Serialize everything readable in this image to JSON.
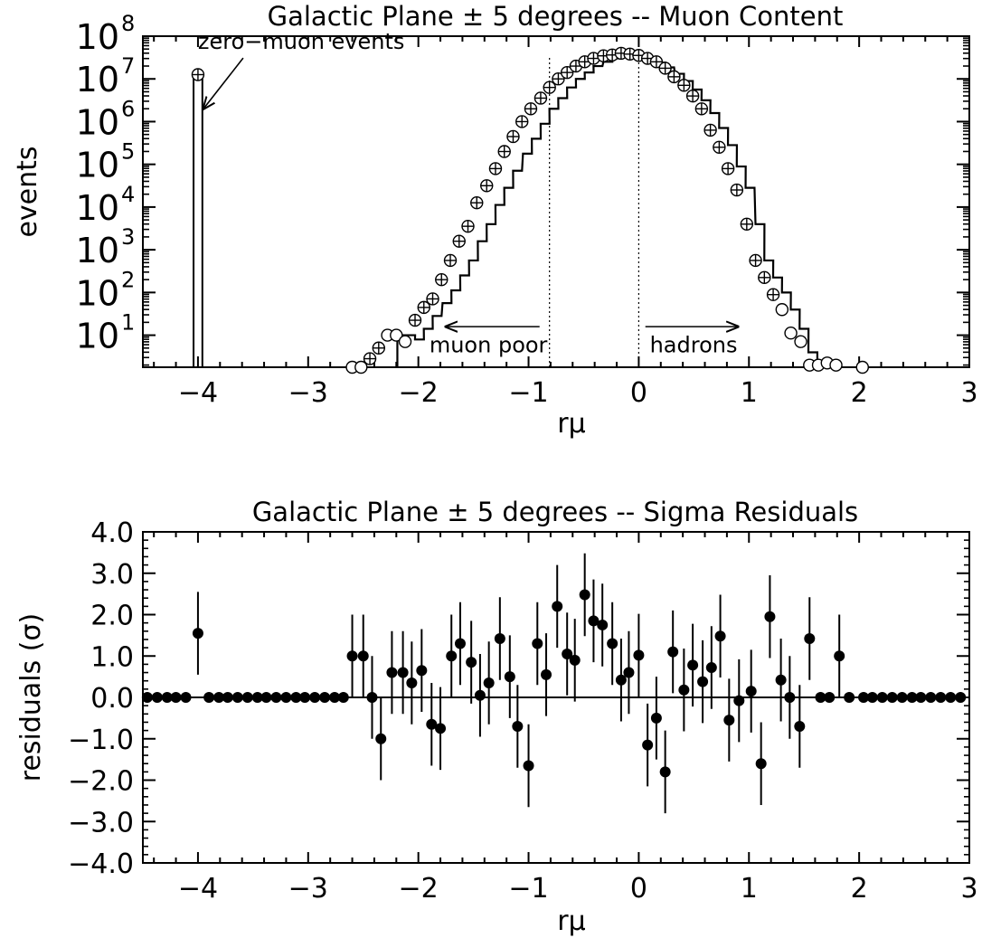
{
  "chart_data": [
    {
      "type": "step",
      "title": "Galactic Plane ± 5 degrees -- Muon Content",
      "xlabel": "rμ",
      "ylabel": "events",
      "xlim": [
        -4.5,
        3.0
      ],
      "ylim_log10": [
        0.25,
        8.0
      ],
      "yscale": "log",
      "xticks": [
        -4,
        -3,
        -2,
        -1,
        0,
        1,
        2,
        3
      ],
      "xtick_labels": [
        "−4",
        "−3",
        "−2",
        "−1",
        "0",
        "1",
        "2",
        "3"
      ],
      "yticks_log10": [
        1,
        2,
        3,
        4,
        5,
        6,
        7,
        8
      ],
      "ytick_exponents": [
        "1",
        "2",
        "3",
        "4",
        "5",
        "6",
        "7",
        "8"
      ],
      "ytick_base": "10",
      "zero_muon_bar": {
        "x0": -4.04,
        "x1": -3.96,
        "log10_events": 7.1
      },
      "series": [
        {
          "kind": "histogram",
          "bin_width": 0.0811,
          "bin_centers": [
            -2.15,
            -2.07,
            -1.99,
            -1.91,
            -1.83,
            -1.74,
            -1.66,
            -1.58,
            -1.5,
            -1.42,
            -1.34,
            -1.26,
            -1.18,
            -1.1,
            -1.01,
            -0.93,
            -0.85,
            -0.77,
            -0.69,
            -0.61,
            -0.53,
            -0.45,
            -0.37,
            -0.28,
            -0.2,
            -0.12,
            -0.04,
            0.04,
            0.12,
            0.2,
            0.28,
            0.37,
            0.45,
            0.53,
            0.61,
            0.69,
            0.77,
            0.85,
            0.93,
            1.01,
            1.1,
            1.18,
            1.26,
            1.34,
            1.42,
            1.5,
            1.58
          ],
          "log10_events": [
            1.0,
            1.0,
            0.9,
            1.15,
            1.45,
            1.75,
            2.05,
            2.4,
            2.75,
            3.2,
            3.6,
            4.05,
            4.45,
            4.85,
            5.25,
            5.6,
            5.95,
            6.3,
            6.55,
            6.8,
            7.0,
            7.15,
            7.3,
            7.4,
            7.48,
            7.53,
            7.55,
            7.52,
            7.47,
            7.38,
            7.27,
            7.12,
            6.95,
            6.75,
            6.5,
            6.2,
            5.85,
            5.45,
            4.95,
            4.45,
            3.6,
            2.75,
            2.35,
            2.0,
            1.6,
            1.15,
            0.6
          ]
        },
        {
          "kind": "open-circles",
          "x": [
            -4.0,
            -2.6,
            -2.52,
            -2.44,
            -2.36,
            -2.28,
            -2.2,
            -2.12,
            -2.03,
            -1.95,
            -1.87,
            -1.79,
            -1.71,
            -1.63,
            -1.55,
            -1.47,
            -1.38,
            -1.3,
            -1.22,
            -1.14,
            -1.06,
            -0.98,
            -0.89,
            -0.81,
            -0.73,
            -0.65,
            -0.57,
            -0.49,
            -0.41,
            -0.32,
            -0.24,
            -0.16,
            -0.08,
            0.0,
            0.08,
            0.16,
            0.24,
            0.32,
            0.41,
            0.49,
            0.57,
            0.65,
            0.73,
            0.81,
            0.89,
            0.98,
            1.06,
            1.14,
            1.22,
            1.3,
            1.38,
            1.47,
            1.55,
            1.63,
            1.71,
            1.79,
            2.03
          ],
          "log10_events": [
            7.1,
            0.25,
            0.25,
            0.45,
            0.7,
            1.0,
            1.0,
            0.85,
            1.35,
            1.65,
            1.85,
            2.3,
            2.75,
            3.2,
            3.55,
            4.1,
            4.5,
            4.9,
            5.3,
            5.65,
            6.0,
            6.3,
            6.55,
            6.8,
            7.0,
            7.15,
            7.3,
            7.4,
            7.48,
            7.54,
            7.56,
            7.6,
            7.58,
            7.55,
            7.48,
            7.4,
            7.25,
            7.05,
            6.85,
            6.6,
            6.3,
            5.8,
            5.4,
            4.9,
            4.4,
            3.6,
            2.75,
            2.35,
            1.95,
            1.6,
            1.05,
            0.85,
            0.3,
            0.3,
            0.35,
            0.3,
            0.25
          ],
          "crosshair": [
            true,
            false,
            false,
            true,
            true,
            false,
            false,
            false,
            true,
            true,
            true,
            true,
            true,
            true,
            true,
            true,
            true,
            true,
            true,
            true,
            true,
            true,
            true,
            true,
            true,
            true,
            true,
            true,
            true,
            true,
            true,
            true,
            true,
            true,
            true,
            true,
            true,
            true,
            true,
            true,
            true,
            true,
            true,
            true,
            true,
            true,
            true,
            true,
            true,
            false,
            false,
            false,
            false,
            false,
            false,
            false,
            false
          ]
        }
      ],
      "vlines": [
        -0.81,
        0.0
      ],
      "annotations": [
        {
          "text": "zero−muon events",
          "x": -4.0,
          "log10_y": 7.7,
          "arrow_to": [
            -3.95,
            6.3
          ]
        },
        {
          "text": "muon poor",
          "x": -1.9,
          "log10_y": 0.6,
          "arrow_from": [
            -0.9,
            1.2
          ],
          "arrow_to": [
            -1.75,
            1.2
          ]
        },
        {
          "text": "hadrons",
          "x": 0.1,
          "log10_y": 0.6,
          "arrow_from": [
            0.06,
            1.2
          ],
          "arrow_to": [
            0.9,
            1.2
          ]
        }
      ]
    },
    {
      "type": "scatter",
      "title": "Galactic Plane ± 5 degrees -- Sigma Residuals",
      "xlabel": "rμ",
      "ylabel": "residuals (σ)",
      "xlim": [
        -4.5,
        3.0
      ],
      "ylim": [
        -4.0,
        4.0
      ],
      "xticks": [
        -4,
        -3,
        -2,
        -1,
        0,
        1,
        2,
        3
      ],
      "xtick_labels": [
        "−4",
        "−3",
        "−2",
        "−1",
        "0",
        "1",
        "2",
        "3"
      ],
      "yticks": [
        -4,
        -3,
        -2,
        -1,
        0,
        1,
        2,
        3,
        4
      ],
      "ytick_labels": [
        "−4.0",
        "−3.0",
        "−2.0",
        "−1.0",
        "0.0",
        "1.0",
        "2.0",
        "3.0",
        "4.0"
      ],
      "hline": 0.0,
      "x": [
        -4.46,
        -4.37,
        -4.28,
        -4.2,
        -4.11,
        -4.0,
        -3.9,
        -3.81,
        -3.73,
        -3.64,
        -3.55,
        -3.46,
        -3.38,
        -3.29,
        -3.2,
        -3.11,
        -3.03,
        -2.94,
        -2.85,
        -2.76,
        -2.68,
        -2.6,
        -2.5,
        -2.42,
        -2.34,
        -2.24,
        -2.14,
        -2.06,
        -1.97,
        -1.88,
        -1.8,
        -1.7,
        -1.62,
        -1.52,
        -1.44,
        -1.36,
        -1.26,
        -1.17,
        -1.1,
        -1.0,
        -0.92,
        -0.84,
        -0.74,
        -0.65,
        -0.58,
        -0.49,
        -0.41,
        -0.33,
        -0.24,
        -0.16,
        -0.09,
        0.0,
        0.08,
        0.16,
        0.24,
        0.31,
        0.41,
        0.49,
        0.58,
        0.66,
        0.74,
        0.82,
        0.91,
        1.02,
        1.11,
        1.19,
        1.29,
        1.37,
        1.46,
        1.55,
        1.65,
        1.73,
        1.82,
        1.91,
        2.04,
        2.12,
        2.21,
        2.3,
        2.39,
        2.48,
        2.56,
        2.65,
        2.74,
        2.83,
        2.92
      ],
      "y": [
        0,
        0,
        0,
        0,
        0,
        1.55,
        0,
        0,
        0,
        0,
        0,
        0,
        0,
        0,
        0,
        0,
        0,
        0,
        0,
        0,
        0,
        1.0,
        1.0,
        0.0,
        -1.0,
        0.6,
        0.6,
        0.35,
        0.65,
        -0.65,
        -0.75,
        1.0,
        1.3,
        0.85,
        0.05,
        0.35,
        1.42,
        0.5,
        -0.7,
        -1.65,
        1.3,
        0.55,
        2.2,
        1.05,
        0.9,
        2.48,
        1.85,
        1.75,
        1.3,
        0.42,
        0.6,
        1.02,
        -1.15,
        -0.5,
        -1.8,
        1.1,
        0.18,
        0.78,
        0.38,
        0.72,
        1.48,
        -0.55,
        -0.08,
        0.15,
        -1.6,
        1.95,
        0.42,
        0.0,
        -0.7,
        1.42,
        0,
        0,
        1.0,
        0,
        0,
        0,
        0,
        0,
        0,
        0,
        0,
        0,
        0,
        0,
        0
      ],
      "yerr": [
        0,
        0,
        0,
        0,
        0,
        1.0,
        0,
        0,
        0,
        0,
        0,
        0,
        0,
        0,
        0,
        0,
        0,
        0,
        0,
        0,
        0,
        1.0,
        1.0,
        1.0,
        1.0,
        1.0,
        1.0,
        1.0,
        1.0,
        1.0,
        1.0,
        1.0,
        1.0,
        1.0,
        1.0,
        1.0,
        1.0,
        1.0,
        1.0,
        1.0,
        1.0,
        1.0,
        1.0,
        1.0,
        1.0,
        1.0,
        1.0,
        1.0,
        1.0,
        1.0,
        1.0,
        1.0,
        1.0,
        1.0,
        1.0,
        1.0,
        1.0,
        1.0,
        1.0,
        1.0,
        1.0,
        1.0,
        1.0,
        1.0,
        1.0,
        1.0,
        1.0,
        1.0,
        1.0,
        1.0,
        0,
        0,
        1.0,
        0,
        0,
        0,
        0,
        0,
        0,
        0,
        0,
        0,
        0,
        0,
        0
      ]
    }
  ]
}
